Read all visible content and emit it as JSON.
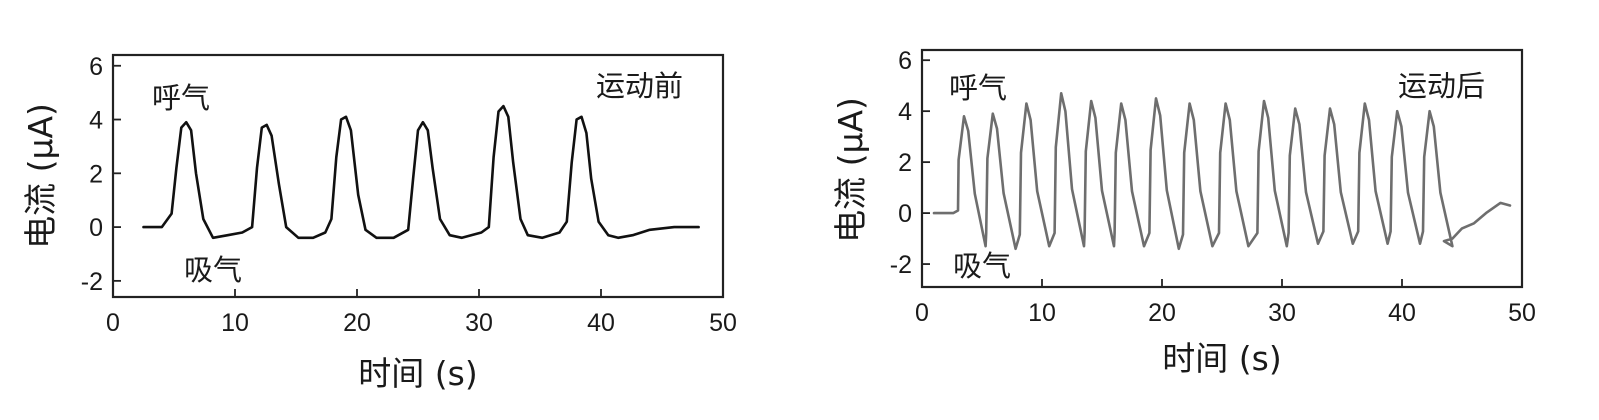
{
  "chart_data": [
    {
      "type": "line",
      "panel": "left",
      "xlabel": "时间 (s)",
      "ylabel": "电流 (μA)",
      "xlim": [
        0,
        50
      ],
      "ylim": [
        -2.6,
        6.4
      ],
      "xticks": [
        0,
        10,
        20,
        30,
        40,
        50
      ],
      "yticks": [
        -2,
        0,
        2,
        4,
        6
      ],
      "annotations": {
        "top_right": "运动前",
        "peak": "呼气",
        "trough": "吸气"
      },
      "line_color": "#111111",
      "series": [
        {
          "x": [
            2.5,
            4.0,
            4.8,
            5.2,
            5.6,
            6.0,
            6.4,
            6.8,
            7.4,
            8.2,
            9.4,
            10.6,
            11.4,
            11.8,
            12.2,
            12.6,
            13.0,
            13.6,
            14.2,
            15.2,
            16.4,
            17.4,
            17.9,
            18.3,
            18.7,
            19.1,
            19.5,
            20.1,
            20.7,
            21.6,
            23.0,
            24.2,
            24.6,
            25.0,
            25.4,
            25.8,
            26.2,
            26.8,
            27.6,
            28.6,
            30.2,
            30.8,
            31.2,
            31.6,
            32.0,
            32.4,
            32.8,
            33.4,
            34.0,
            35.2,
            36.6,
            37.2,
            37.6,
            38.0,
            38.4,
            38.8,
            39.2,
            39.8,
            40.6,
            41.4,
            42.6,
            44.0,
            46.0,
            48.0
          ],
          "y": [
            0.0,
            0.0,
            0.5,
            2.2,
            3.7,
            3.9,
            3.6,
            2.0,
            0.3,
            -0.4,
            -0.3,
            -0.2,
            0.0,
            2.2,
            3.7,
            3.8,
            3.4,
            1.6,
            0.0,
            -0.4,
            -0.4,
            -0.2,
            0.3,
            2.6,
            4.0,
            4.1,
            3.6,
            1.2,
            -0.1,
            -0.4,
            -0.4,
            -0.1,
            1.8,
            3.6,
            3.9,
            3.6,
            2.2,
            0.3,
            -0.3,
            -0.4,
            -0.2,
            0.0,
            2.6,
            4.3,
            4.5,
            4.1,
            2.4,
            0.3,
            -0.3,
            -0.4,
            -0.2,
            0.2,
            2.4,
            4.0,
            4.1,
            3.5,
            1.8,
            0.2,
            -0.3,
            -0.4,
            -0.3,
            -0.1,
            0.0,
            0.0
          ]
        }
      ]
    },
    {
      "type": "line",
      "panel": "right",
      "xlabel": "时间 (s)",
      "ylabel": "电流 (μA)",
      "xlim": [
        0,
        50
      ],
      "ylim": [
        -2.9,
        6.4
      ],
      "xticks": [
        0,
        10,
        20,
        30,
        40,
        50
      ],
      "yticks": [
        -2,
        0,
        2,
        4,
        6
      ],
      "annotations": {
        "top_right": "运动后",
        "peak": "呼气",
        "trough": "吸气"
      },
      "line_color": "#6e6e6e",
      "peaks_x": [
        3.5,
        5.9,
        8.7,
        11.6,
        14.1,
        16.6,
        19.5,
        22.3,
        25.3,
        28.5,
        31.1,
        34.0,
        36.9,
        39.6,
        42.3
      ],
      "peaks_y": [
        3.8,
        3.9,
        4.3,
        4.7,
        4.4,
        4.3,
        4.5,
        4.3,
        4.3,
        4.4,
        4.1,
        4.1,
        4.3,
        4.0,
        4.0
      ],
      "troughs_y": [
        -1.3,
        -1.4,
        -1.3,
        -1.3,
        -1.3,
        -1.3,
        -1.4,
        -1.3,
        -1.3,
        -1.3,
        -1.2,
        -1.2,
        -1.2,
        -1.2,
        -1.3
      ],
      "tail_x": [
        43.5,
        44.2,
        45.0,
        46.0,
        47.0,
        48.2,
        49.0
      ],
      "tail_y": [
        -1.1,
        -1.0,
        -0.6,
        -0.4,
        0.0,
        0.4,
        0.3
      ],
      "start_x": [
        1.0,
        2.6,
        3.0
      ]
    }
  ]
}
